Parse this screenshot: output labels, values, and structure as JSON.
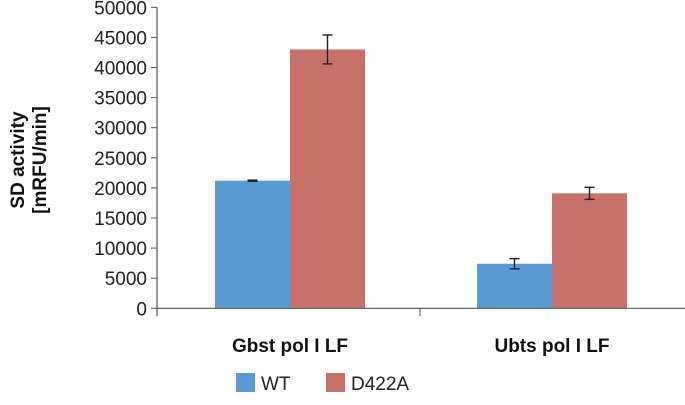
{
  "chart_data": {
    "type": "bar",
    "title": "",
    "xlabel": "",
    "ylabel_lines": [
      "SD activity",
      "[mRFU/min]"
    ],
    "ylim": [
      0,
      50000
    ],
    "yticks": [
      0,
      5000,
      10000,
      15000,
      20000,
      25000,
      30000,
      35000,
      40000,
      45000,
      50000
    ],
    "categories": [
      "Gbst pol I LF",
      "Ubts pol I LF"
    ],
    "series": [
      {
        "name": "WT",
        "color": "#5b9bd5",
        "values": [
          21200,
          7400
        ],
        "errors": [
          100,
          850
        ]
      },
      {
        "name": "D422A",
        "color": "#c8706a",
        "values": [
          43000,
          19100
        ],
        "errors": [
          2400,
          1000
        ]
      }
    ],
    "legend": "bottom",
    "grid": false
  }
}
